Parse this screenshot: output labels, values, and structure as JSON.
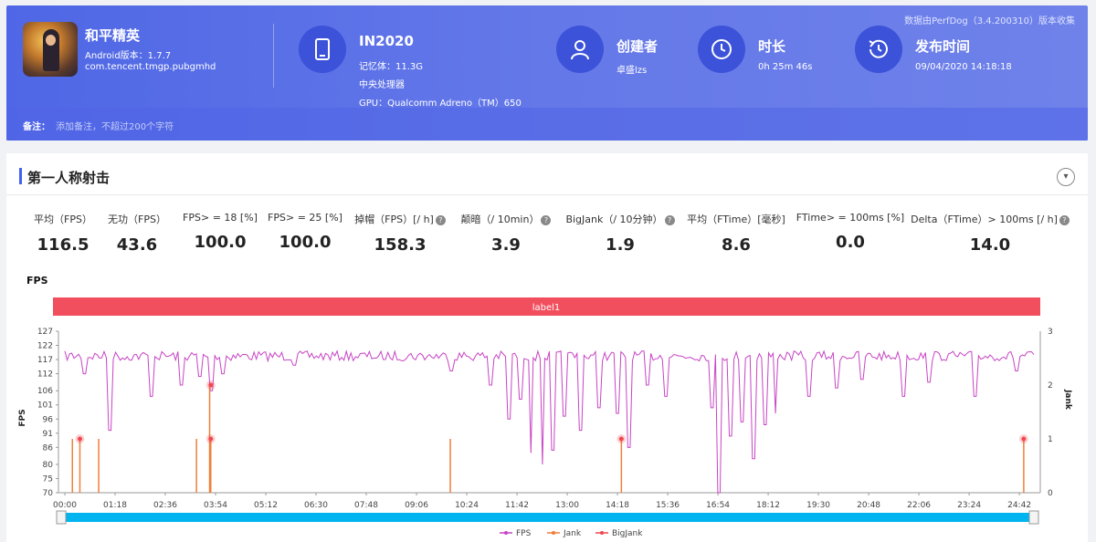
{
  "header": {
    "source_note": "数据由PerfDog（3.4.200310）版本收集",
    "app": {
      "name": "和平精英",
      "version": "Android版本：1.7.7",
      "package": "com.tencent.tmgp.pubgmhd"
    },
    "device": {
      "name": "IN2020",
      "memory": "记忆体：11.3G",
      "cpu": "中央处理器",
      "gpu": "GPU：Qualcomm Adreno（TM）650"
    },
    "creator": {
      "title": "创建者",
      "value": "卓盛lzs"
    },
    "duration": {
      "title": "时长",
      "value": "0h 25m 46s"
    },
    "published": {
      "title": "发布时间",
      "value": "09/04/2020 14:18:18"
    },
    "remark_label": "备注：",
    "remark_placeholder": "添加备注，不超过200个字符"
  },
  "section": {
    "title": "第一人称射击",
    "collapse_icon": "chevron-down-icon"
  },
  "metrics": [
    {
      "label": "平均（FPS）",
      "value": "116.5",
      "help": false
    },
    {
      "label": "无功（FPS）",
      "value": "43.6",
      "help": false
    },
    {
      "label": "FPS> = 18 [%]",
      "value": "100.0",
      "help": false
    },
    {
      "label": "FPS> = 25 [%]",
      "value": "100.0",
      "help": false
    },
    {
      "label": "掉帽（FPS）[/ h]",
      "value": "158.3",
      "help": true
    },
    {
      "label": "颠暗（/ 10min）",
      "value": "3.9",
      "help": true
    },
    {
      "label": "BigJank（/ 10分钟）",
      "value": "1.9",
      "help": true
    },
    {
      "label": "平均（FTime）[毫秒]",
      "value": "8.6",
      "help": false
    },
    {
      "label": "FTime> = 100ms [%]",
      "value": "0.0",
      "help": false
    },
    {
      "label": "Delta（FTime）> 100ms [/ h]",
      "value": "14.0",
      "help": true
    }
  ],
  "chart_data": {
    "type": "line",
    "title": "FPS",
    "band_label": "label1",
    "ylabel": "FPS",
    "y2label": "Jank",
    "yticks": [
      70,
      75,
      80,
      86,
      91,
      96,
      101,
      106,
      112,
      117,
      122,
      127
    ],
    "ylim": [
      70,
      127
    ],
    "y2ticks": [
      0,
      1,
      2,
      3
    ],
    "y2lim": [
      0,
      3
    ],
    "xticks": [
      "00:00",
      "01:18",
      "02:36",
      "03:54",
      "05:12",
      "06:30",
      "07:48",
      "09:06",
      "10:24",
      "11:42",
      "13:00",
      "14:18",
      "15:36",
      "16:54",
      "18:12",
      "19:30",
      "20:48",
      "22:06",
      "23:24",
      "24:42"
    ],
    "series": [
      {
        "name": "FPS",
        "color": "#c744c4",
        "baseline": 120,
        "dips": [
          [
            0.5,
            112
          ],
          [
            1.2,
            92
          ],
          [
            1.6,
            117
          ],
          [
            2.3,
            104
          ],
          [
            3.1,
            108
          ],
          [
            3.6,
            111
          ],
          [
            3.9,
            106
          ],
          [
            4.2,
            112
          ],
          [
            6.1,
            115
          ],
          [
            8.5,
            117
          ],
          [
            10.3,
            113
          ],
          [
            11.3,
            108
          ],
          [
            11.8,
            96
          ],
          [
            12.1,
            103
          ],
          [
            12.4,
            84
          ],
          [
            12.7,
            80
          ],
          [
            13.0,
            85
          ],
          [
            13.3,
            97
          ],
          [
            13.7,
            92
          ],
          [
            14.2,
            100
          ],
          [
            14.7,
            98
          ],
          [
            15.0,
            86
          ],
          [
            15.5,
            108
          ],
          [
            16.0,
            104
          ],
          [
            17.2,
            100
          ],
          [
            17.4,
            70
          ],
          [
            17.7,
            90
          ],
          [
            18.0,
            95
          ],
          [
            18.3,
            82
          ],
          [
            18.6,
            94
          ],
          [
            18.9,
            98
          ],
          [
            19.8,
            104
          ],
          [
            20.5,
            107
          ],
          [
            21.2,
            110
          ],
          [
            22.3,
            104
          ],
          [
            23.0,
            109
          ],
          [
            24.2,
            104
          ],
          [
            25.3,
            113
          ]
        ]
      },
      {
        "name": "Jank",
        "color": "#f07e3a",
        "events": [
          [
            0.2,
            1
          ],
          [
            0.4,
            1
          ],
          [
            0.9,
            1
          ],
          [
            3.5,
            1
          ],
          [
            3.85,
            2
          ],
          [
            3.88,
            1
          ],
          [
            10.25,
            1
          ],
          [
            14.8,
            1
          ],
          [
            25.5,
            1
          ]
        ]
      },
      {
        "name": "BigJank",
        "color": "#f0474f",
        "events": [
          [
            0.4,
            1
          ],
          [
            3.88,
            2
          ],
          [
            3.88,
            1
          ],
          [
            14.8,
            1
          ],
          [
            25.5,
            1
          ]
        ]
      }
    ],
    "legend": [
      "FPS",
      "Jank",
      "BigJank"
    ],
    "legend_position": "bottom"
  }
}
